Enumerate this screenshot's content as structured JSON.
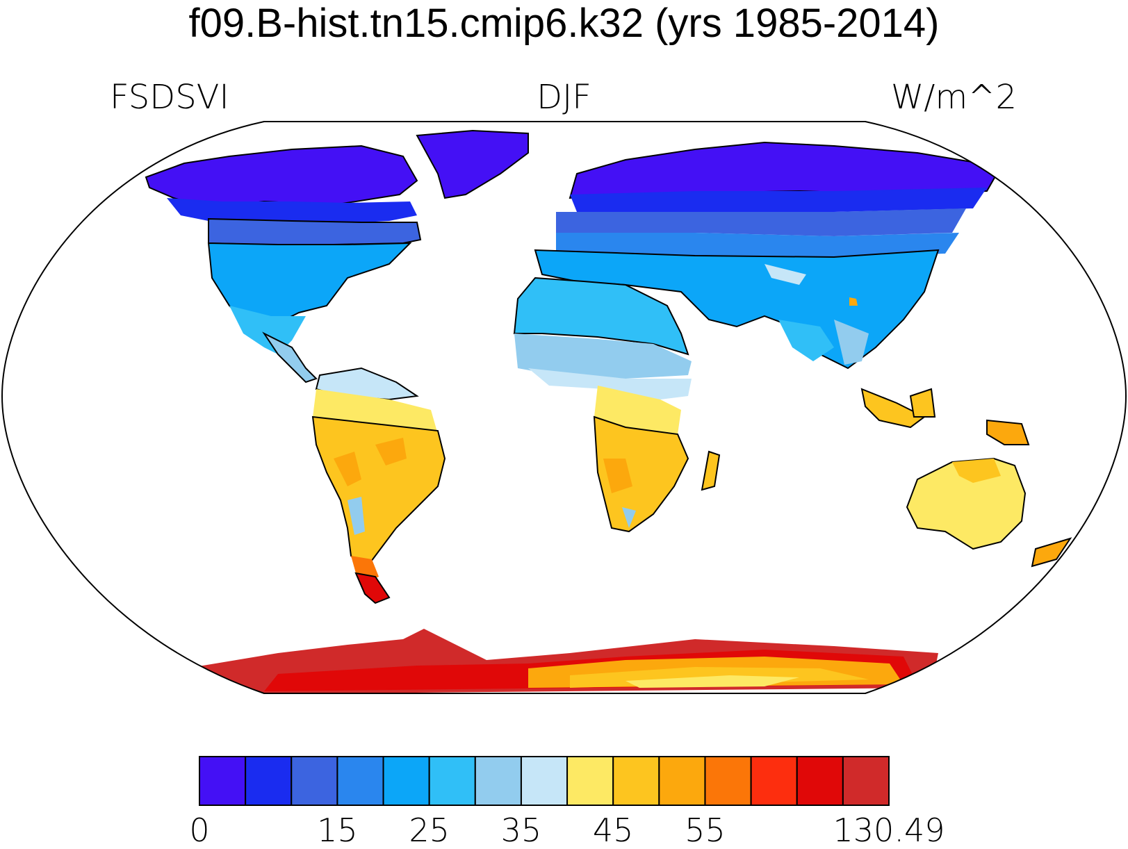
{
  "title": "f09.B-hist.tn15.cmip6.k32 (yrs 1985-2014)",
  "variable": "FSDSVI",
  "season": "DJF",
  "units": "W/m^2",
  "colorbar": {
    "colors": [
      "#4410f5",
      "#1a2cf0",
      "#3c64e0",
      "#2a86ee",
      "#0ca6f8",
      "#30bff7",
      "#92ccee",
      "#c6e6f8",
      "#fde964",
      "#fdc51f",
      "#fca80d",
      "#fb7608",
      "#fd2e0e",
      "#e00808",
      "#d02a2a"
    ],
    "tick_labels": [
      "0",
      "15",
      "25",
      "35",
      "45",
      "55",
      "130.49"
    ],
    "tick_boundary_index": [
      0,
      3,
      5,
      7,
      9,
      11,
      15
    ]
  },
  "map": {
    "projection": "Robinson",
    "land_fill": "shaded",
    "ocean_fill": "#ffffff"
  }
}
